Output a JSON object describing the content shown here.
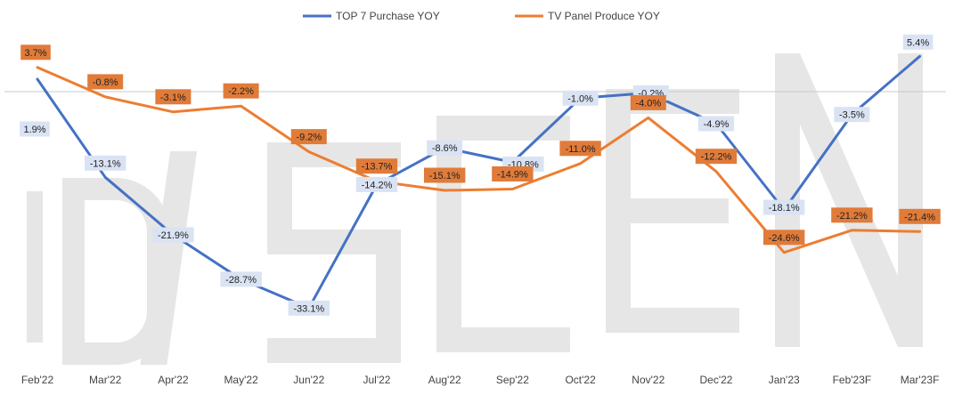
{
  "chart_data": {
    "type": "line",
    "title": "",
    "xlabel": "",
    "ylabel": "",
    "categories": [
      "Feb'22",
      "Mar'22",
      "Apr'22",
      "May'22",
      "Jun'22",
      "Jul'22",
      "Aug'22",
      "Sep'22",
      "Oct'22",
      "Nov'22",
      "Dec'22",
      "Jan'23",
      "Feb'23F",
      "Mar'23F"
    ],
    "series": [
      {
        "name": "TOP 7 Purchase YOY",
        "color": "#4472C4",
        "label_bg": "#DAE3F3",
        "label_color": "#222222",
        "values": [
          1.9,
          -13.1,
          -21.9,
          -28.7,
          -33.1,
          -14.2,
          -8.6,
          -10.8,
          -1.0,
          -0.2,
          -4.9,
          -18.1,
          -3.5,
          5.4
        ],
        "labels": [
          "1.9%",
          "-13.1%",
          "-21.9%",
          "-28.7%",
          "-33.1%",
          "-14.2%",
          "-8.6%",
          "-10.8%",
          "-1.0%",
          "-0.2%",
          "-4.9%",
          "-18.1%",
          "-3.5%",
          "5.4%"
        ]
      },
      {
        "name": "TV Panel Produce YOY",
        "color": "#ED7D31",
        "label_bg": "#E07B39",
        "label_color": "#222222",
        "values": [
          3.7,
          -0.8,
          -3.1,
          -2.2,
          -9.2,
          -13.7,
          -15.1,
          -14.9,
          -11.0,
          -4.0,
          -12.2,
          -24.6,
          -21.2,
          -21.4
        ],
        "labels": [
          "3.7%",
          "-0.8%",
          "-3.1%",
          "-2.2%",
          "-9.2%",
          "-13.7%",
          "-15.1%",
          "-14.9%",
          "-11.0%",
          "-4.0%",
          "-12.2%",
          "-24.6%",
          "-21.2%",
          "-21.4%"
        ]
      }
    ],
    "ylim": [
      -40,
      10
    ],
    "zero_line": true,
    "grid": false,
    "legend_position": "top-center",
    "watermark": "DISCIEN"
  }
}
